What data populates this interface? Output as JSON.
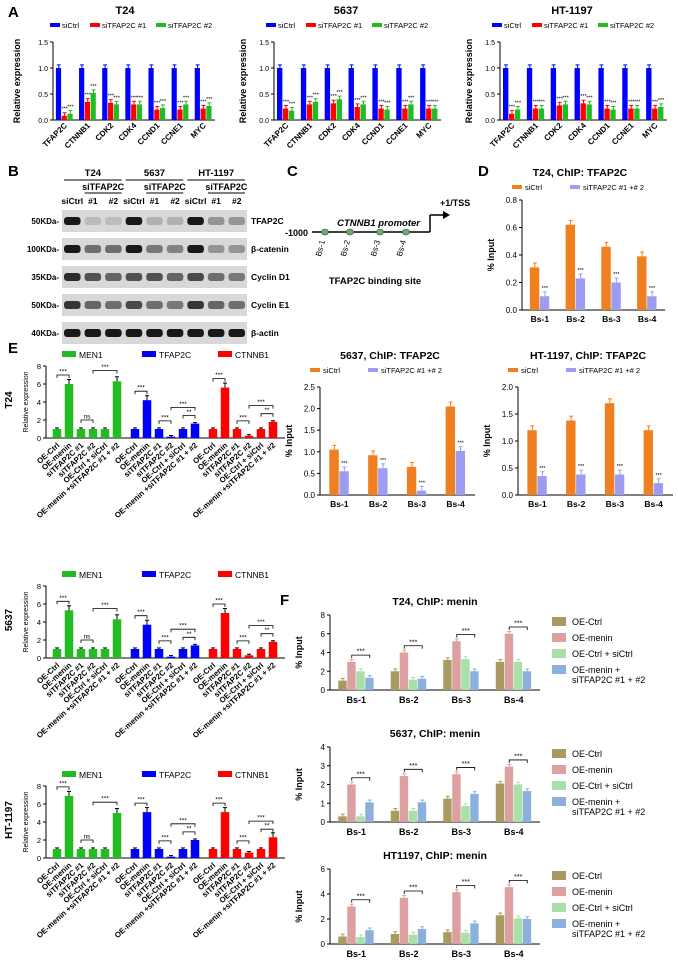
{
  "panels": {
    "A": "A",
    "B": "B",
    "C": "C",
    "D": "D",
    "E": "E",
    "F": "F"
  },
  "colors": {
    "siCtrl": "#0000ff",
    "si1": "#ff0000",
    "si2": "#22bb22",
    "ch_ctrl": "#f07f1f",
    "ch_si": "#9c9cf0",
    "men1": "#22bb22",
    "tfap": "#0000ff",
    "ctnnb": "#ff0000",
    "f_ocl": "#a89a60",
    "f_om": "#dca0a0",
    "f_os": "#a8e0a8",
    "f_oms": "#8cb0dc"
  },
  "panel_a": {
    "legend": [
      "siCtrl",
      "siTFAP2C #1",
      "siTFAP2C #2"
    ],
    "ylabel": "Relative expression",
    "yticks": [
      "0.0",
      "0.5",
      "1.0",
      "1.5"
    ],
    "genes": [
      "TFAP2C",
      "CTNNB1",
      "CDK2",
      "CDK4",
      "CCND1",
      "CCNE1",
      "MYC"
    ],
    "sig": "***"
  },
  "chart_data": [
    {
      "type": "bar",
      "title": "T24",
      "categories": [
        "TFAP2C",
        "CTNNB1",
        "CDK2",
        "CDK4",
        "CCND1",
        "CCNE1",
        "MYC"
      ],
      "ylabel": "Relative expression",
      "ylim": [
        0,
        1.5
      ],
      "series": [
        {
          "name": "siCtrl",
          "values": [
            1,
            1,
            1,
            1,
            1,
            1,
            1
          ]
        },
        {
          "name": "siTFAP2C #1",
          "values": [
            0.08,
            0.35,
            0.33,
            0.3,
            0.2,
            0.2,
            0.22
          ]
        },
        {
          "name": "siTFAP2C #2",
          "values": [
            0.12,
            0.52,
            0.3,
            0.3,
            0.23,
            0.3,
            0.27
          ]
        }
      ]
    },
    {
      "type": "bar",
      "title": "5637",
      "categories": [
        "TFAP2C",
        "CTNNB1",
        "CDK2",
        "CDK4",
        "CCND1",
        "CCNE1",
        "MYC"
      ],
      "ylabel": "Relative expression",
      "ylim": [
        0,
        1.5
      ],
      "series": [
        {
          "name": "siCtrl",
          "values": [
            1,
            1,
            1,
            1,
            1,
            1,
            1
          ]
        },
        {
          "name": "siTFAP2C #1",
          "values": [
            0.22,
            0.3,
            0.32,
            0.25,
            0.22,
            0.22,
            0.22
          ]
        },
        {
          "name": "siTFAP2C #2",
          "values": [
            0.18,
            0.35,
            0.4,
            0.3,
            0.2,
            0.3,
            0.22
          ]
        }
      ]
    },
    {
      "type": "bar",
      "title": "HT-1197",
      "categories": [
        "TFAP2C",
        "CTNNB1",
        "CDK2",
        "CDK4",
        "CCND1",
        "CCNE1",
        "MYC"
      ],
      "ylabel": "Relative expression",
      "ylim": [
        0,
        1.5
      ],
      "series": [
        {
          "name": "siCtrl",
          "values": [
            1,
            1,
            1,
            1,
            1,
            1,
            1
          ]
        },
        {
          "name": "siTFAP2C #1",
          "values": [
            0.12,
            0.22,
            0.28,
            0.32,
            0.22,
            0.22,
            0.22
          ]
        },
        {
          "name": "siTFAP2C #2",
          "values": [
            0.2,
            0.22,
            0.3,
            0.3,
            0.2,
            0.22,
            0.25
          ]
        }
      ]
    },
    {
      "type": "bar",
      "title": "T24, ChIP: TFAP2C",
      "categories": [
        "Bs-1",
        "Bs-2",
        "Bs-3",
        "Bs-4"
      ],
      "ylabel": "% Input",
      "ylim": [
        0,
        0.8
      ],
      "series": [
        {
          "name": "siCtrl",
          "values": [
            0.31,
            0.62,
            0.46,
            0.39
          ]
        },
        {
          "name": "siTFAP2C #1 +# 2",
          "values": [
            0.1,
            0.23,
            0.2,
            0.1
          ]
        }
      ]
    },
    {
      "type": "bar",
      "title": "5637, ChIP: TFAP2C",
      "categories": [
        "Bs-1",
        "Bs-2",
        "Bs-3",
        "Bs-4"
      ],
      "ylabel": "% Input",
      "ylim": [
        0,
        2.5
      ],
      "series": [
        {
          "name": "siCtrl",
          "values": [
            1.05,
            0.92,
            0.65,
            2.05
          ]
        },
        {
          "name": "siTFAP2C #1 +# 2",
          "values": [
            0.55,
            0.62,
            0.1,
            1.02
          ]
        }
      ]
    },
    {
      "type": "bar",
      "title": "HT-1197, ChIP: TFAP2C",
      "categories": [
        "Bs-1",
        "Bs-2",
        "Bs-3",
        "Bs-4"
      ],
      "ylabel": "% Input",
      "ylim": [
        0,
        2.0
      ],
      "series": [
        {
          "name": "siCtrl",
          "values": [
            1.2,
            1.38,
            1.7,
            1.2
          ]
        },
        {
          "name": "siTFAP2C #1 +# 2",
          "values": [
            0.35,
            0.38,
            0.38,
            0.22
          ]
        }
      ]
    },
    {
      "type": "bar",
      "title": "T24",
      "categories": [
        "OE-Ctrl",
        "OE-menin",
        "siTFAP2C #1",
        "siTFAP2C #2",
        "OE-Ctrl + siCtrl",
        "OE-menin +siTFAP2C #1 + #2"
      ],
      "ylabel": "Relative expression",
      "ylim": [
        0,
        8
      ],
      "series": [
        {
          "name": "MEN1",
          "values": [
            1,
            6,
            1,
            1,
            1,
            6.3
          ]
        },
        {
          "name": "TFAP2C",
          "values": [
            1,
            4.2,
            1,
            0.15,
            1,
            1.6
          ]
        },
        {
          "name": "CTNNB1",
          "values": [
            1,
            5.6,
            1,
            0.25,
            1,
            1.8
          ]
        }
      ]
    },
    {
      "type": "bar",
      "title": "5637",
      "categories": [
        "OE-Ctrl",
        "OE-menin",
        "siTFAP2C #1",
        "siTFAP2C #2",
        "OE-Ctrl + siCtrl",
        "OE-menin +siTFAP2C #1 + #2"
      ],
      "ylabel": "Relative expression",
      "ylim": [
        0,
        8
      ],
      "series": [
        {
          "name": "MEN1",
          "values": [
            1,
            5.3,
            1,
            1,
            1,
            4.3
          ]
        },
        {
          "name": "TFAP2C",
          "values": [
            1,
            3.7,
            1,
            0.15,
            1,
            1.4
          ]
        },
        {
          "name": "CTNNB1",
          "values": [
            1,
            5,
            1,
            0.3,
            1,
            1.8
          ]
        }
      ]
    },
    {
      "type": "bar",
      "title": "HT-1197",
      "categories": [
        "OE-Ctrl",
        "OE-menin",
        "siTFAP2C #1",
        "siTFAP2C #2",
        "OE-Ctrl + siCtrl",
        "OE-menin +siTFAP2C #1 + #2"
      ],
      "ylabel": "Relative expression",
      "ylim": [
        0,
        8
      ],
      "series": [
        {
          "name": "MEN1",
          "values": [
            1,
            6.9,
            1,
            1,
            1,
            5
          ]
        },
        {
          "name": "TFAP2C",
          "values": [
            1,
            5.1,
            1,
            0.15,
            1,
            2
          ]
        },
        {
          "name": "CTNNB1",
          "values": [
            1,
            5.1,
            1,
            0.6,
            1,
            2.3
          ]
        }
      ]
    },
    {
      "type": "bar",
      "title": "T24, ChIP: menin",
      "categories": [
        "Bs-1",
        "Bs-2",
        "Bs-3",
        "Bs-4"
      ],
      "ylabel": "% Input",
      "ylim": [
        0,
        8
      ],
      "series": [
        {
          "name": "OE-Ctrl",
          "values": [
            1,
            2,
            3.2,
            3
          ]
        },
        {
          "name": "OE-menin",
          "values": [
            3,
            4,
            5.2,
            6
          ]
        },
        {
          "name": "OE-Ctrl + siCtrl",
          "values": [
            2,
            1.1,
            3.3,
            3
          ]
        },
        {
          "name": "OE-menin + siTFAP2C #1 + #2",
          "values": [
            1.3,
            1.2,
            2,
            2
          ]
        }
      ]
    },
    {
      "type": "bar",
      "title": "5637, ChIP: menin",
      "categories": [
        "Bs-1",
        "Bs-2",
        "Bs-3",
        "Bs-4"
      ],
      "ylabel": "% Input",
      "ylim": [
        0,
        4
      ],
      "series": [
        {
          "name": "OE-Ctrl",
          "values": [
            0.3,
            0.6,
            1.25,
            2.05
          ]
        },
        {
          "name": "OE-menin",
          "values": [
            2,
            2.45,
            2.55,
            2.95
          ]
        },
        {
          "name": "OE-Ctrl + siCtrl",
          "values": [
            0.3,
            0.6,
            0.85,
            2
          ]
        },
        {
          "name": "OE-menin + siTFAP2C #1 + #2",
          "values": [
            1.05,
            1.05,
            1.5,
            1.65
          ]
        }
      ]
    },
    {
      "type": "bar",
      "title": "HT1197, ChIP: menin",
      "categories": [
        "Bs-1",
        "Bs-2",
        "Bs-3",
        "Bs-4"
      ],
      "ylabel": "% Input",
      "ylim": [
        0,
        6
      ],
      "series": [
        {
          "name": "OE-Ctrl",
          "values": [
            0.6,
            0.8,
            0.95,
            2.3
          ]
        },
        {
          "name": "OE-menin",
          "values": [
            3,
            3.7,
            4.15,
            4.55
          ]
        },
        {
          "name": "OE-Ctrl + siCtrl",
          "values": [
            0.55,
            0.75,
            0.9,
            2.05
          ]
        },
        {
          "name": "OE-menin + siTFAP2C #1 + #2",
          "values": [
            1.1,
            1.2,
            1.65,
            2
          ]
        }
      ]
    }
  ],
  "panel_b": {
    "cell_lines": [
      "T24",
      "5637",
      "HT-1197"
    ],
    "group_label": "siTFAP2C",
    "lanes": [
      "siCtrl",
      "#1",
      "#2"
    ],
    "markers": [
      "50KDa-",
      "100KDa-",
      "35KDa-",
      "50KDa-",
      "40KDa-"
    ],
    "proteins": [
      "TFAP2C",
      "β-catenin",
      "Cyclin D1",
      "Cyclin E1",
      "β-actin"
    ]
  },
  "panel_c": {
    "start": "-1000",
    "promoter": "CTNNB1 promoter",
    "tss": "+1/TSS",
    "sites": [
      "Bs-1",
      "Bs-2",
      "Bs-3",
      "Bs-4"
    ],
    "caption": "TFAP2C binding site"
  },
  "panel_de": {
    "legend": [
      "siCtrl",
      "siTFAP2C #1 +# 2"
    ],
    "ylabel": "% Input"
  },
  "panel_e": {
    "legend": [
      "MEN1",
      "TFAP2C",
      "CTNNB1"
    ],
    "ns": "ns"
  },
  "panel_f": {
    "legend": [
      "OE-Ctrl",
      "OE-menin",
      "OE-Ctrl + siCtrl",
      "OE-menin +",
      "siTFAP2C #1 + #2"
    ]
  }
}
